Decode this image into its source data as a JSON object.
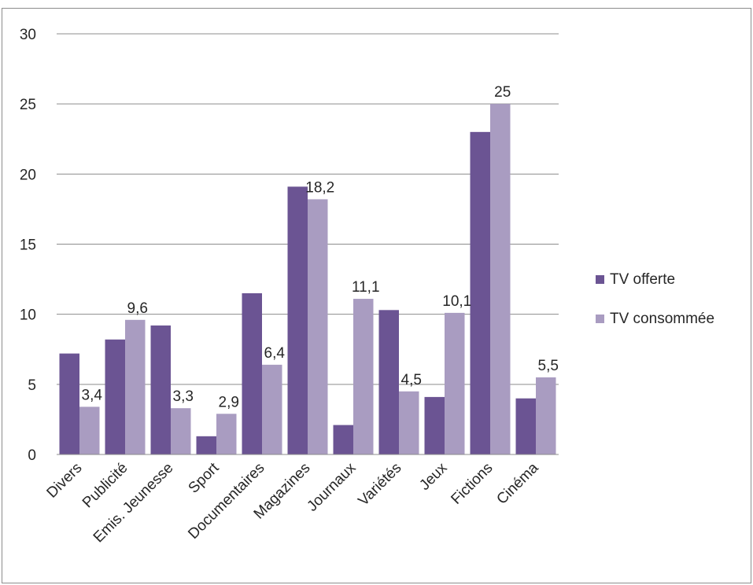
{
  "chart_data": {
    "type": "bar",
    "categories": [
      "Divers",
      "Publicité",
      "Emis. Jeunesse",
      "Sport",
      "Documentaires",
      "Magazines",
      "Journaux",
      "Variétés",
      "Jeux",
      "Fictions",
      "Cinéma"
    ],
    "series": [
      {
        "name": "TV offerte",
        "color": "#6b5493",
        "values": [
          7.2,
          8.2,
          9.2,
          1.3,
          11.5,
          19.1,
          2.1,
          10.3,
          4.1,
          23.0,
          4.0
        ],
        "data_labels": [
          "",
          "",
          "",
          "",
          "",
          "",
          "",
          "",
          "",
          "",
          ""
        ]
      },
      {
        "name": "TV consommée",
        "color": "#a99cc1",
        "values": [
          3.4,
          9.6,
          3.3,
          2.9,
          6.4,
          18.2,
          11.1,
          4.5,
          10.1,
          25,
          5.5
        ],
        "data_labels": [
          "3,4",
          "9,6",
          "3,3",
          "2,9",
          "6,4",
          "18,2",
          "11,1",
          "4,5",
          "10,1",
          "25",
          "5,5"
        ]
      }
    ],
    "y_ticks": [
      "0",
      "5",
      "10",
      "15",
      "20",
      "25",
      "30"
    ],
    "ylim": [
      0,
      30
    ],
    "grid": true,
    "legend_position": "right",
    "gridline_color": "#8c8c8c"
  }
}
